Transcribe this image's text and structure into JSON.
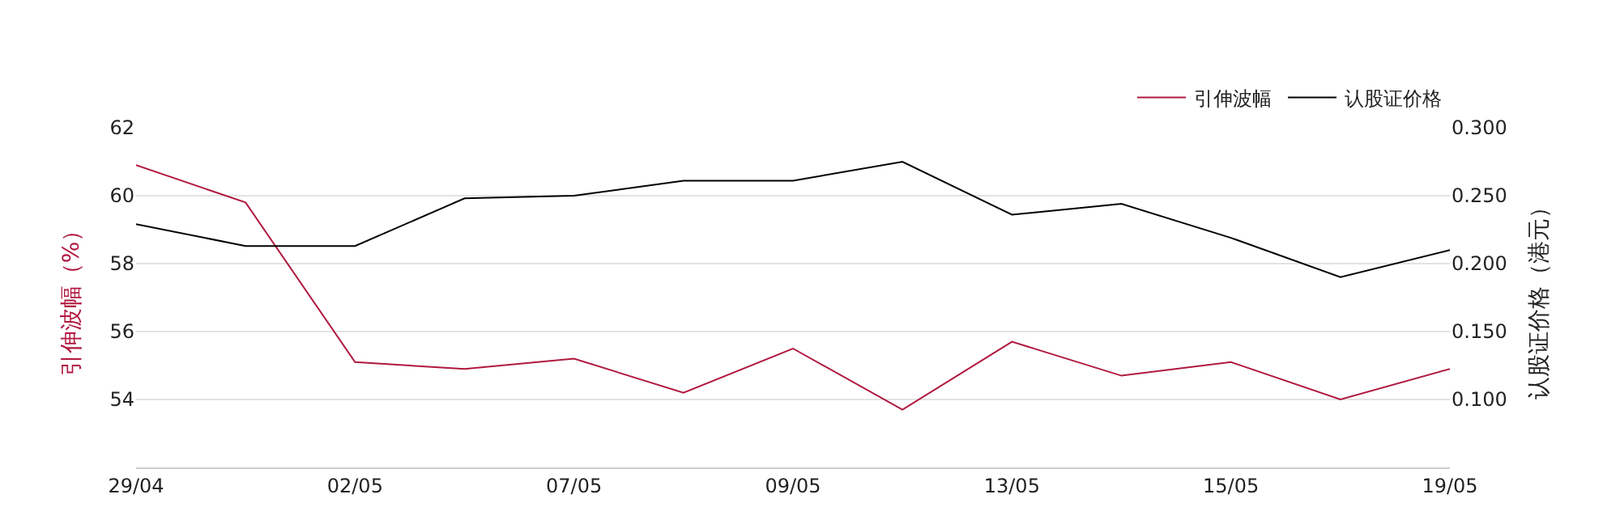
{
  "chart_data": {
    "type": "line",
    "categories": [
      "29/04",
      null,
      "02/05",
      null,
      "07/05",
      null,
      "09/05",
      null,
      "13/05",
      null,
      "15/05",
      null,
      "19/05"
    ],
    "series": [
      {
        "name": "引伸波幅",
        "color": "#b0183f",
        "values": [
          60.9,
          59.8,
          55.1,
          54.9,
          55.2,
          54.2,
          55.5,
          53.7,
          55.7,
          54.7,
          55.1,
          54.0,
          54.9
        ]
      },
      {
        "name": "认股证价格",
        "color": "#000000",
        "axis": "y2",
        "values": [
          0.229,
          0.213,
          0.213,
          0.248,
          0.25,
          0.261,
          0.261,
          0.275,
          0.236,
          0.244,
          0.219,
          0.19,
          0.21
        ]
      }
    ],
    "ylabel": "引伸波幅（%）",
    "y2label": "认股证价格（港元）",
    "ylim": [
      52,
      62
    ],
    "yticks": [
      54,
      56,
      58,
      60,
      62
    ],
    "y2lim": [
      0.05,
      0.3
    ],
    "y2ticks": [
      {
        "value": 0.1,
        "label": "0.100"
      },
      {
        "value": 0.15,
        "label": "0.150"
      },
      {
        "value": 0.2,
        "label": "0.200"
      },
      {
        "value": 0.25,
        "label": "0.250"
      },
      {
        "value": 0.3,
        "label": "0.300"
      }
    ],
    "grid": "y",
    "legend": "top right",
    "marker": "none",
    "line_style": "solid"
  }
}
